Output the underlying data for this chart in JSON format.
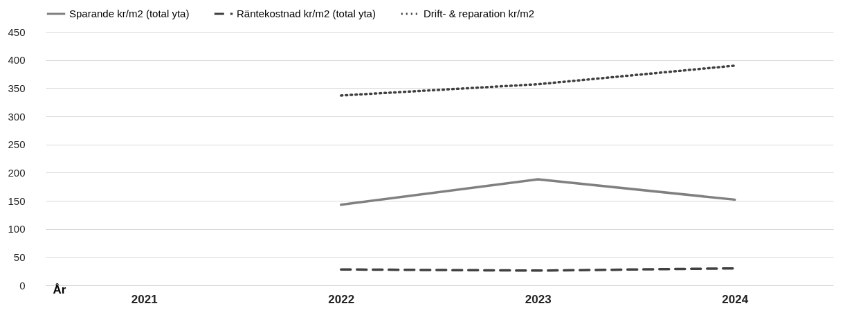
{
  "chart_data": {
    "type": "line",
    "xlabel": "År",
    "categories": [
      "2021",
      "2022",
      "2023",
      "2024"
    ],
    "series": [
      {
        "name": "Sparande kr/m2  (total yta)",
        "color": "#808080",
        "line_style": "solid",
        "values": [
          null,
          143,
          188,
          152
        ]
      },
      {
        "name": "Räntekostnad kr/m2  (total yta)",
        "color": "#404040",
        "line_style": "dashed",
        "values": [
          null,
          28,
          26,
          30
        ]
      },
      {
        "name": "Drift- & reparation kr/m2",
        "color": "#404040",
        "line_style": "dotted",
        "values": [
          null,
          337,
          357,
          390
        ]
      }
    ],
    "ylim": [
      0,
      450
    ],
    "yticks": [
      0,
      50,
      100,
      150,
      200,
      250,
      300,
      350,
      400,
      450
    ],
    "grid": "y",
    "legend": "top",
    "marker": "none"
  }
}
